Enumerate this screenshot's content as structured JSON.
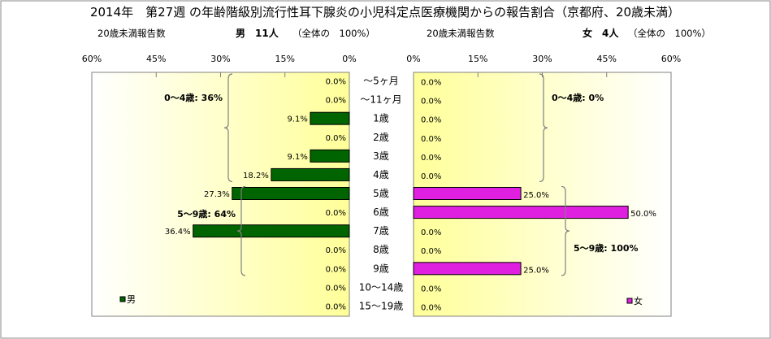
{
  "title": "2014年　第27週 の年齢階級別流行性耳下腺炎の小児科定点医療機関からの報告割合（京都府、20歳未満）",
  "left_panel": {
    "caption": "20歳未満報告数",
    "sex_count": "男　11人",
    "total": "（全体の　100%）",
    "legend": "男",
    "color": "#006400"
  },
  "right_panel": {
    "caption": "20歳未満報告数",
    "sex_count": "女　4人",
    "total": "（全体の　100%）",
    "legend": "女",
    "color": "#e020e0"
  },
  "chart_data": {
    "type": "bar",
    "orientation": "horizontal-butterfly",
    "categories": [
      "～5ヶ月",
      "～11ヶ月",
      "1歳",
      "2歳",
      "3歳",
      "4歳",
      "5歳",
      "6歳",
      "7歳",
      "8歳",
      "9歳",
      "10～14歳",
      "15～19歳"
    ],
    "series": [
      {
        "name": "男",
        "values": [
          0.0,
          0.0,
          9.1,
          0.0,
          9.1,
          18.2,
          27.3,
          0.0,
          36.4,
          0.0,
          0.0,
          0.0,
          0.0
        ],
        "labels": [
          "0.0%",
          "0.0%",
          "9.1%",
          "0.0%",
          "9.1%",
          "18.2%",
          "27.3%",
          "0.0%",
          "36.4%",
          "0.0%",
          "0.0%",
          "0.0%",
          "0.0%"
        ]
      },
      {
        "name": "女",
        "values": [
          0.0,
          0.0,
          0.0,
          0.0,
          0.0,
          0.0,
          25.0,
          50.0,
          0.0,
          0.0,
          25.0,
          0.0,
          0.0
        ],
        "labels": [
          "0.0%",
          "0.0%",
          "0.0%",
          "0.0%",
          "0.0%",
          "0.0%",
          "25.0%",
          "50.0%",
          "0.0%",
          "0.0%",
          "25.0%",
          "0.0%",
          "0.0%"
        ]
      }
    ],
    "left_ticks": [
      "60%",
      "45%",
      "30%",
      "15%",
      "0%"
    ],
    "right_ticks": [
      "0%",
      "15%",
      "30%",
      "45%",
      "60%"
    ],
    "xlim": [
      0,
      60
    ],
    "group_labels": {
      "left": [
        {
          "text": "0～4歳: 36%",
          "from": 0,
          "to": 5
        },
        {
          "text": "5～9歳: 64%",
          "from": 6,
          "to": 10
        }
      ],
      "right": [
        {
          "text": "0～4歳: 0%",
          "from": 0,
          "to": 5
        },
        {
          "text": "5～9歳: 100%",
          "from": 6,
          "to": 10
        }
      ]
    }
  }
}
